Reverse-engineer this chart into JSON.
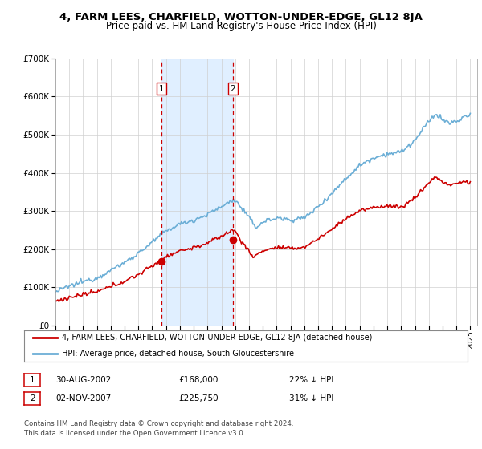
{
  "title": "4, FARM LEES, CHARFIELD, WOTTON-UNDER-EDGE, GL12 8JA",
  "subtitle": "Price paid vs. HM Land Registry's House Price Index (HPI)",
  "sale1_label": "30-AUG-2002",
  "sale1_price": 168000,
  "sale1_pct": "22% ↓ HPI",
  "sale2_label": "02-NOV-2007",
  "sale2_price": 225750,
  "sale2_pct": "31% ↓ HPI",
  "sale1_x": 2002.66,
  "sale2_x": 2007.84,
  "ylim_min": 0,
  "ylim_max": 700000,
  "xlim_min": 1995.0,
  "xlim_max": 2025.5,
  "hpi_color": "#6baed6",
  "price_color": "#cc0000",
  "legend_label1": "4, FARM LEES, CHARFIELD, WOTTON-UNDER-EDGE, GL12 8JA (detached house)",
  "legend_label2": "HPI: Average price, detached house, South Gloucestershire",
  "footer": "Contains HM Land Registry data © Crown copyright and database right 2024.\nThis data is licensed under the Open Government Licence v3.0.",
  "background_color": "#ffffff",
  "shade_color": "#ddeeff"
}
